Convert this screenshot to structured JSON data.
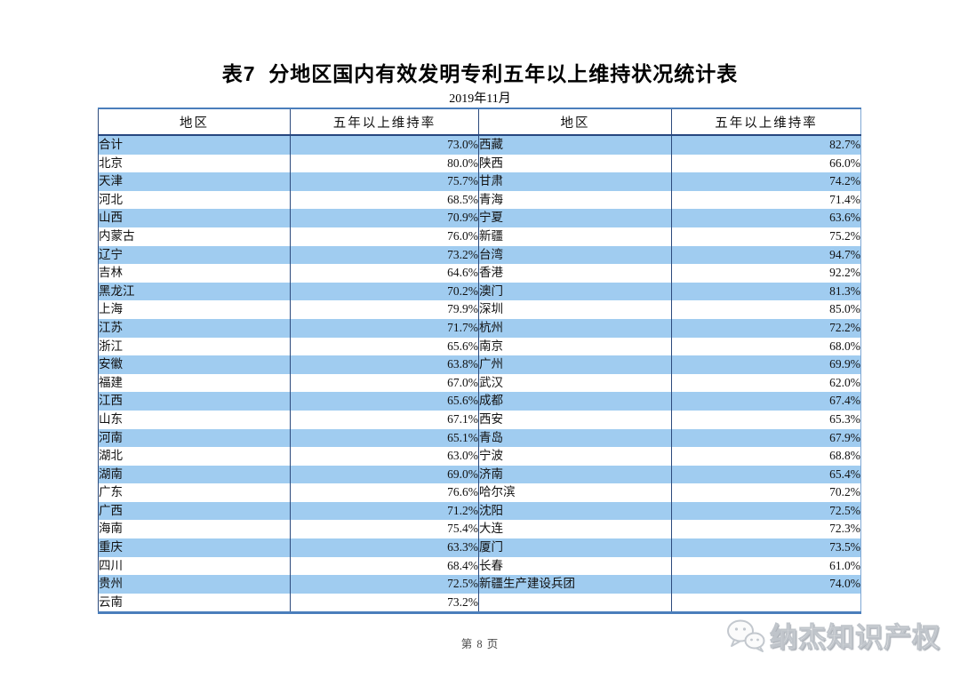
{
  "page": {
    "title": "表7  分地区国内有效发明专利五年以上维持状况统计表",
    "date": "2019年11月",
    "footer": "第 8 页",
    "watermark": "纳杰知识产权"
  },
  "icons": {
    "watermark_logo": "wechat-logo-icon"
  },
  "table": {
    "headers": [
      "地区",
      "五年以上维持率",
      "地区",
      "五年以上维持率"
    ],
    "rows": [
      [
        "合计",
        "73.0%",
        "西藏",
        "82.7%"
      ],
      [
        "北京",
        "80.0%",
        "陕西",
        "66.0%"
      ],
      [
        "天津",
        "75.7%",
        "甘肃",
        "74.2%"
      ],
      [
        "河北",
        "68.5%",
        "青海",
        "71.4%"
      ],
      [
        "山西",
        "70.9%",
        "宁夏",
        "63.6%"
      ],
      [
        "内蒙古",
        "76.0%",
        "新疆",
        "75.2%"
      ],
      [
        "辽宁",
        "73.2%",
        "台湾",
        "94.7%"
      ],
      [
        "吉林",
        "64.6%",
        "香港",
        "92.2%"
      ],
      [
        "黑龙江",
        "70.2%",
        "澳门",
        "81.3%"
      ],
      [
        "上海",
        "79.9%",
        "深圳",
        "85.0%"
      ],
      [
        "江苏",
        "71.7%",
        "杭州",
        "72.2%"
      ],
      [
        "浙江",
        "65.6%",
        "南京",
        "68.0%"
      ],
      [
        "安徽",
        "63.8%",
        "广州",
        "69.9%"
      ],
      [
        "福建",
        "67.0%",
        "武汉",
        "62.0%"
      ],
      [
        "江西",
        "65.6%",
        "成都",
        "67.4%"
      ],
      [
        "山东",
        "67.1%",
        "西安",
        "65.3%"
      ],
      [
        "河南",
        "65.1%",
        "青岛",
        "67.9%"
      ],
      [
        "湖北",
        "63.0%",
        "宁波",
        "68.8%"
      ],
      [
        "湖南",
        "69.0%",
        "济南",
        "65.4%"
      ],
      [
        "广东",
        "76.6%",
        "哈尔滨",
        "70.2%"
      ],
      [
        "广西",
        "71.2%",
        "沈阳",
        "72.5%"
      ],
      [
        "海南",
        "75.4%",
        "大连",
        "72.3%"
      ],
      [
        "重庆",
        "63.3%",
        "厦门",
        "73.5%"
      ],
      [
        "四川",
        "68.4%",
        "长春",
        "61.0%"
      ],
      [
        "贵州",
        "72.5%",
        "新疆生产建设兵团",
        "74.0%"
      ],
      [
        "云南",
        "73.2%",
        "",
        ""
      ]
    ]
  },
  "colors": {
    "stripe_blue": "#a0ccf0",
    "border_blue": "#4a7ebb",
    "divider_navy": "#2c4a7c",
    "header_line": "#27477f",
    "footer_text": "#4a4a4a",
    "watermark_gray": "#bfc4ca"
  }
}
